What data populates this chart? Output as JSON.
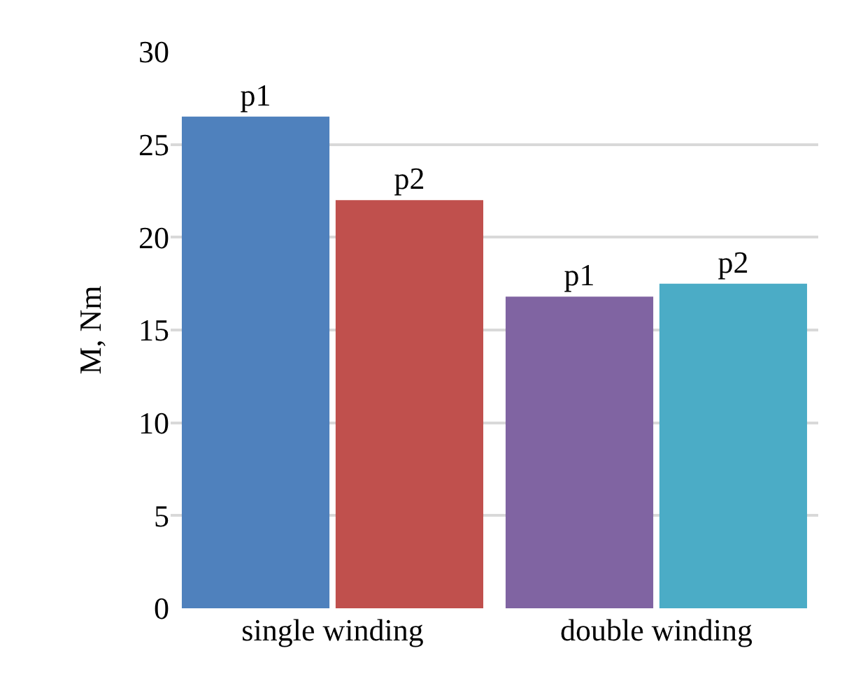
{
  "chart_data": {
    "type": "bar",
    "ylabel": "M, Nm",
    "categories": [
      "single winding",
      "double winding"
    ],
    "series": [
      {
        "colors": [
          "#4f81bd",
          "#8064a2"
        ],
        "values": [
          26.5,
          16.8
        ],
        "value_labels": [
          "p1",
          "p1"
        ]
      },
      {
        "colors": [
          "#c0504d",
          "#4bacc6"
        ],
        "values": [
          22.0,
          17.5
        ],
        "value_labels": [
          "p2",
          "p2"
        ]
      }
    ],
    "ylim": [
      0,
      30
    ],
    "yticks": [
      0,
      5,
      10,
      15,
      20,
      25,
      30
    ],
    "grid": "y"
  }
}
